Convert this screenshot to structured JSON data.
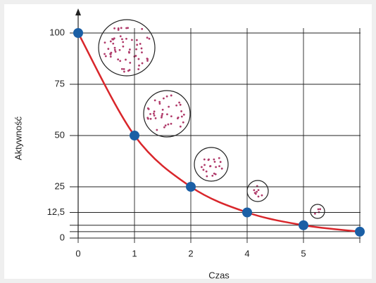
{
  "chart_data": {
    "type": "line",
    "x_label": "Czas",
    "y_label": "Aktywność",
    "categories": [
      "0",
      "1",
      "2",
      "4",
      "5",
      null
    ],
    "series": [
      {
        "name": null,
        "color": "#d9262b",
        "marker_color": "#1b5fa5",
        "values": [
          100,
          50,
          25,
          12.5,
          6.25,
          3.125
        ]
      }
    ],
    "ylim": [
      0,
      100
    ],
    "yticks": [
      0,
      {
        "value": 12.5,
        "label": "12,5"
      },
      25,
      50,
      75,
      100
    ],
    "grid": true
  }
}
